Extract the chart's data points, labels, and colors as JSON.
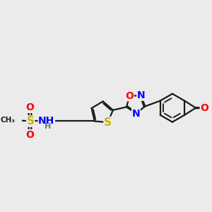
{
  "bg_color": "#ebebeb",
  "bond_color": "#1a1a1a",
  "bond_width": 1.6,
  "atom_colors": {
    "S": "#c8b400",
    "N": "#0000ff",
    "O": "#ff0000",
    "H": "#4a8888",
    "C": "#1a1a1a"
  },
  "fig_size": [
    3.0,
    3.0
  ],
  "dpi": 100
}
